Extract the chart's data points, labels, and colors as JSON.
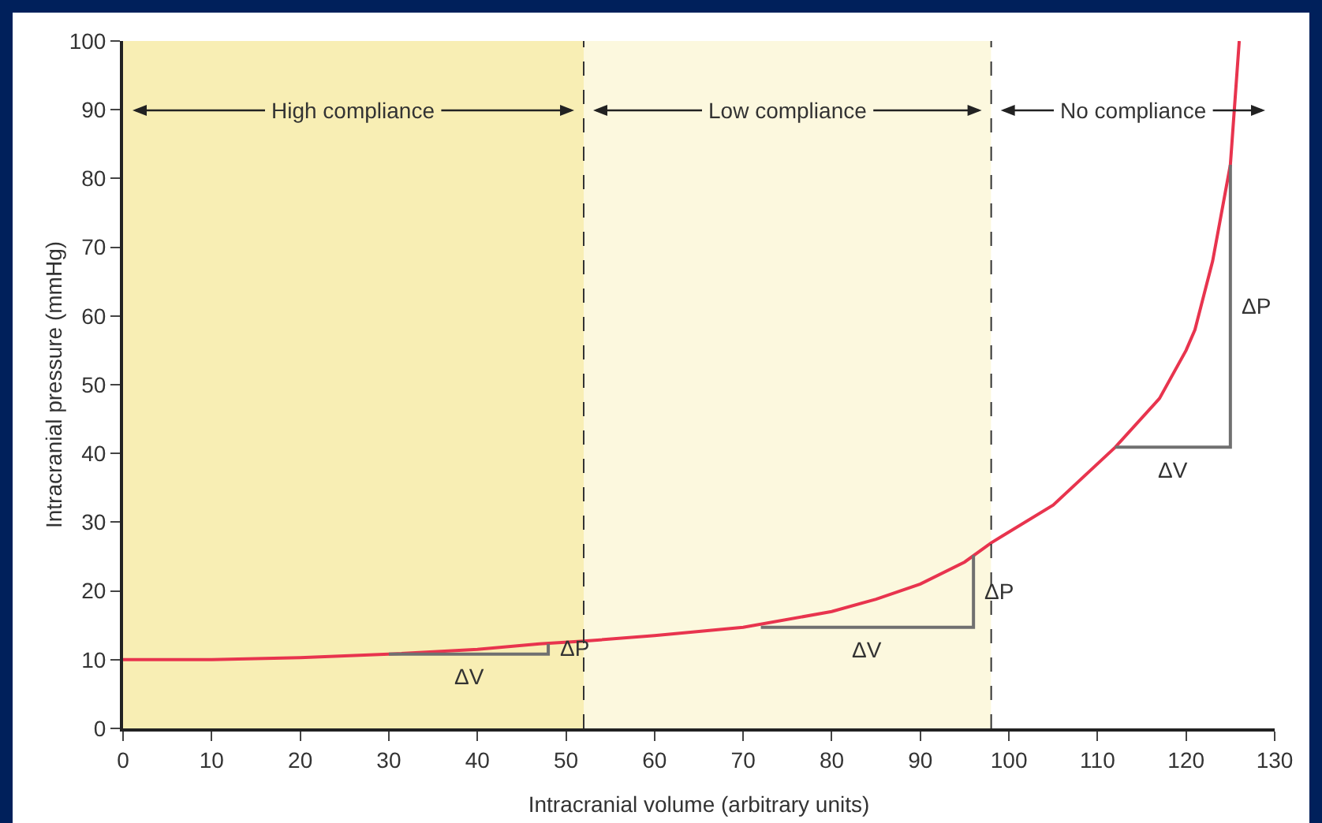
{
  "chart_data": {
    "type": "line",
    "xlabel": "Intracranial volume (arbitrary units)",
    "ylabel": "Intracranial pressure (mmHg)",
    "xlim": [
      0,
      130
    ],
    "xticks": [
      0,
      10,
      20,
      30,
      40,
      50,
      60,
      70,
      80,
      90,
      100,
      110,
      120,
      130
    ],
    "ylim": [
      0,
      100
    ],
    "yticks": [
      0,
      10,
      20,
      30,
      40,
      50,
      60,
      70,
      80,
      90,
      100
    ],
    "grid": false,
    "marker": "none",
    "line_style": "solid",
    "series": [
      {
        "color": "#e8344e",
        "x": [
          0,
          10,
          20,
          30,
          40,
          47,
          52,
          60,
          70,
          80,
          85,
          90,
          95,
          98,
          105,
          112,
          117,
          120,
          121,
          123,
          125,
          126
        ],
        "values": [
          10,
          10,
          10.3,
          10.8,
          11.5,
          12.3,
          12.7,
          13.5,
          14.7,
          17,
          18.8,
          21,
          24.2,
          27,
          32.5,
          40.9,
          48,
          55,
          58,
          68,
          82,
          100
        ]
      },
      {
        "color": "#707070",
        "x": [
          30,
          39,
          48,
          48,
          48
        ],
        "values": [
          10.8,
          10.8,
          10.8,
          11.6,
          12.3
        ]
      },
      {
        "color": "#707070",
        "x": [
          72,
          84,
          96,
          96,
          96
        ],
        "values": [
          14.7,
          14.7,
          14.7,
          20,
          25.2
        ]
      },
      {
        "color": "#707070",
        "x": [
          112,
          118.5,
          125,
          125,
          125
        ],
        "values": [
          40.9,
          40.9,
          40.9,
          61.5,
          82
        ]
      }
    ],
    "bands": [
      {
        "axis": "x",
        "from": 0,
        "to": 52,
        "label": "High compliance",
        "color": "#f8eeb4"
      },
      {
        "axis": "x",
        "from": 52,
        "to": 98,
        "label": "Low compliance",
        "color": "#fcf8de"
      },
      {
        "axis": "x",
        "from": 98,
        "to": 130,
        "label": "No compliance",
        "color": "#ffffff"
      }
    ],
    "ref_lines": [
      {
        "axis": "x",
        "value": 52,
        "color": "#333333",
        "line_style": "dashed"
      },
      {
        "axis": "x",
        "value": 98,
        "color": "#333333",
        "line_style": "dashed"
      }
    ],
    "annotations": [
      {
        "text": "ΔV",
        "x": 39,
        "y": 10.8
      },
      {
        "text": "ΔP",
        "x": 48,
        "y": 11.6
      },
      {
        "text": "ΔV",
        "x": 84,
        "y": 14.7
      },
      {
        "text": "ΔP",
        "x": 96,
        "y": 20
      },
      {
        "text": "ΔV",
        "x": 118.5,
        "y": 40.9
      },
      {
        "text": "ΔP",
        "x": 125,
        "y": 61.5
      }
    ]
  }
}
